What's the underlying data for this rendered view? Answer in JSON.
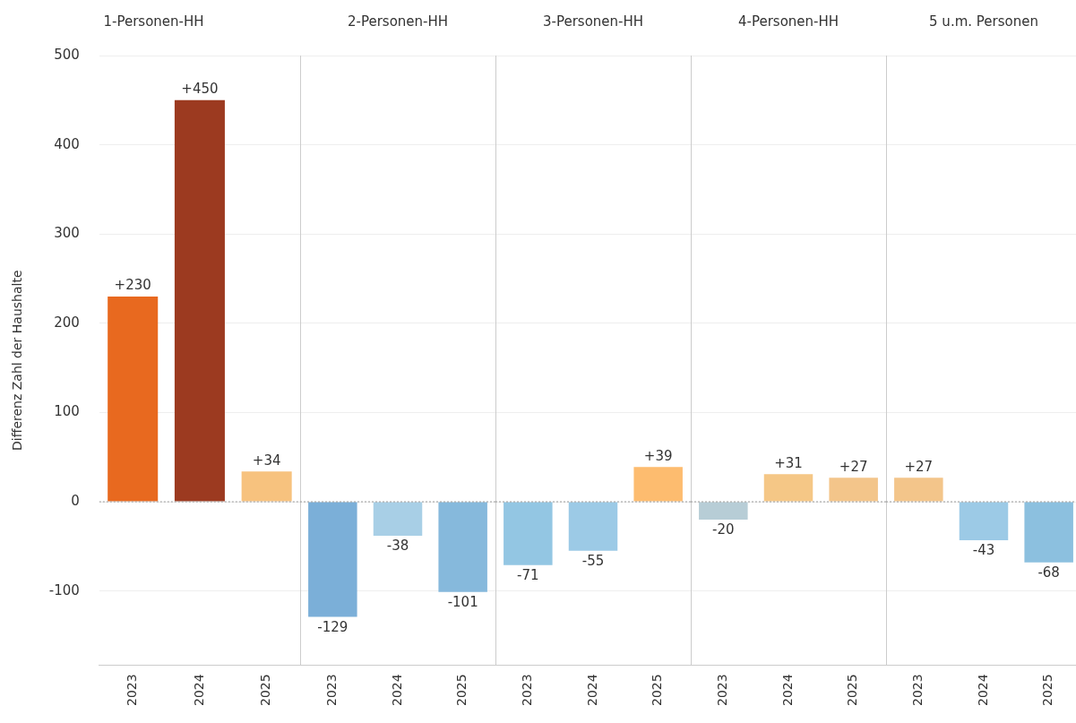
{
  "chart_data": [
    {
      "type": "bar",
      "title": "1-Personen-HH",
      "ylabel": "Differenz Zahl der Haushalte",
      "categories": [
        "2023",
        "2024",
        "2025"
      ],
      "values": [
        230,
        450,
        34
      ],
      "colors": [
        "#e8691f",
        "#9c3a20",
        "#f7c27e"
      ],
      "value_labels": [
        "+230",
        "+450",
        "+34"
      ],
      "ylim": [
        -183,
        500
      ],
      "yticks": [
        -100,
        0,
        100,
        200,
        300,
        400,
        500
      ],
      "grid": "y",
      "ref_lines": [
        {
          "axis": "y",
          "value": 0,
          "line_style": "dotted"
        }
      ]
    },
    {
      "type": "bar",
      "title": "2-Personen-HH",
      "categories": [
        "2023",
        "2024",
        "2025"
      ],
      "values": [
        -129,
        -38,
        -101
      ],
      "colors": [
        "#7bafd8",
        "#a8cfe6",
        "#86b9dc"
      ],
      "value_labels": [
        "-129",
        "-38",
        "-101"
      ],
      "ylim": [
        -183,
        500
      ],
      "yticks": [
        -100,
        0,
        100,
        200,
        300,
        400,
        500
      ],
      "grid": "y",
      "tick_labels": "x",
      "ref_lines": [
        {
          "axis": "y",
          "value": 0,
          "line_style": "dotted"
        }
      ]
    },
    {
      "type": "bar",
      "title": "3-Personen-HH",
      "categories": [
        "2023",
        "2024",
        "2025"
      ],
      "values": [
        -71,
        -55,
        39
      ],
      "colors": [
        "#93c6e3",
        "#9ccae6",
        "#fdbc6f"
      ],
      "value_labels": [
        "-71",
        "-55",
        "+39"
      ],
      "ylim": [
        -183,
        500
      ],
      "yticks": [
        -100,
        0,
        100,
        200,
        300,
        400,
        500
      ],
      "grid": "y",
      "tick_labels": "x",
      "ref_lines": [
        {
          "axis": "y",
          "value": 0,
          "line_style": "dotted"
        }
      ]
    },
    {
      "type": "bar",
      "title": "4-Personen-HH",
      "categories": [
        "2023",
        "2024",
        "2025"
      ],
      "values": [
        -20,
        31,
        27
      ],
      "colors": [
        "#b7cdd6",
        "#f5c786",
        "#f3c58a"
      ],
      "value_labels": [
        "-20",
        "+31",
        "+27"
      ],
      "ylim": [
        -183,
        500
      ],
      "yticks": [
        -100,
        0,
        100,
        200,
        300,
        400,
        500
      ],
      "grid": "y",
      "tick_labels": "x",
      "ref_lines": [
        {
          "axis": "y",
          "value": 0,
          "line_style": "dotted"
        }
      ]
    },
    {
      "type": "bar",
      "title": "5 u.m. Personen",
      "categories": [
        "2023",
        "2024",
        "2025"
      ],
      "values": [
        27,
        -43,
        -68
      ],
      "colors": [
        "#f3c58a",
        "#9ccae6",
        "#8cc0df"
      ],
      "value_labels": [
        "+27",
        "-43",
        "-68"
      ],
      "ylim": [
        -183,
        500
      ],
      "yticks": [
        -100,
        0,
        100,
        200,
        300,
        400,
        500
      ],
      "grid": "y",
      "tick_labels": "x",
      "ref_lines": [
        {
          "axis": "y",
          "value": 0,
          "line_style": "dotted"
        }
      ]
    }
  ]
}
